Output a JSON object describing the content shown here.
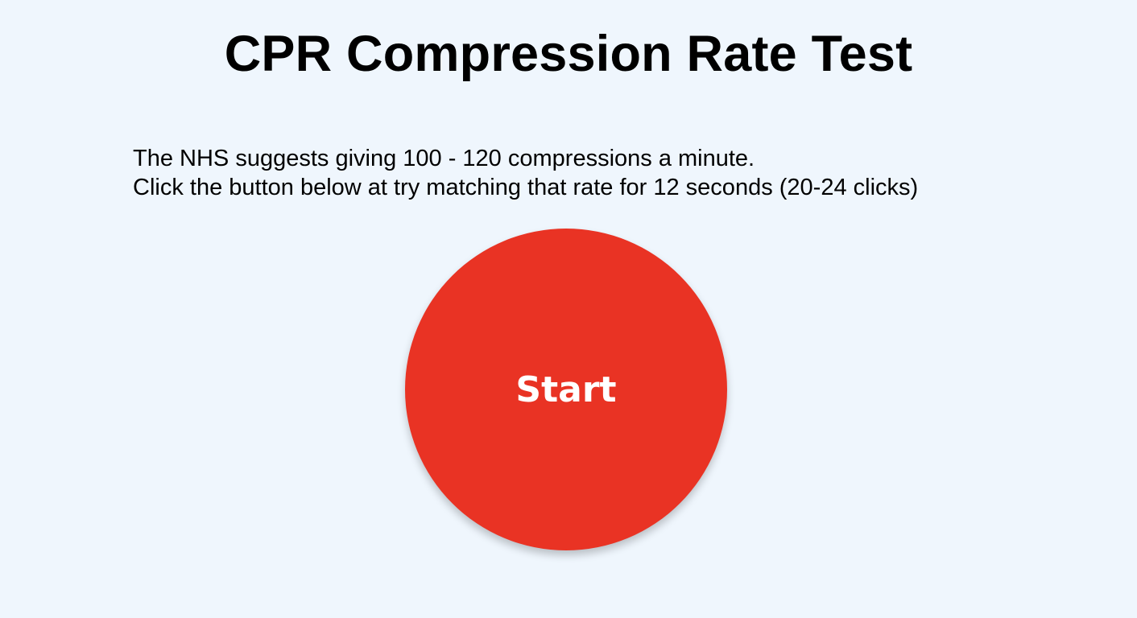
{
  "page": {
    "title": "CPR Compression Rate Test",
    "instructions": {
      "line1": "The NHS suggests giving 100 - 120 compressions a minute.",
      "line2": "Click the button below at try matching that rate for 12 seconds (20-24 clicks)"
    }
  },
  "start_button": {
    "label": "Start"
  },
  "colors": {
    "background": "#eff6fd",
    "button": "#e93324",
    "button_text": "#ffffff",
    "text": "#000000"
  }
}
